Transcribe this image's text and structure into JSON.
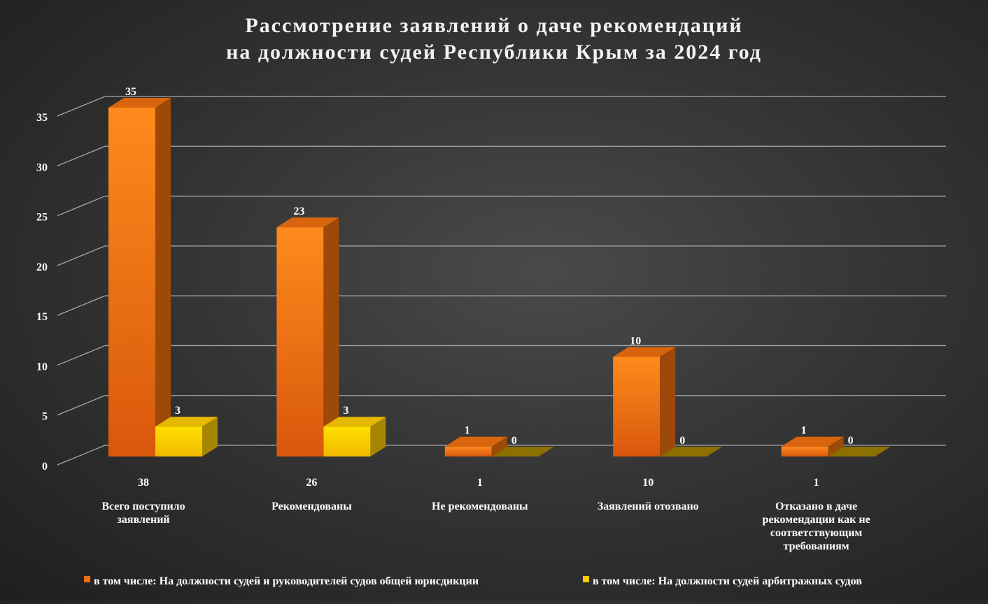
{
  "chart_data": {
    "type": "bar",
    "title_lines": [
      "Рассмотрение заявлений о даче рекомендаций",
      "на должности судей Республики Крым за 2024 год"
    ],
    "categories": [
      [
        "38",
        "Всего поступило",
        "заявлений"
      ],
      [
        "26",
        "Рекомендованы"
      ],
      [
        "1",
        "Не рекомендованы"
      ],
      [
        "10",
        "Заявлений отозвано"
      ],
      [
        "1",
        "Отказано в даче",
        "рекомендации как не",
        "соответствующим",
        "требованиям"
      ]
    ],
    "series": [
      {
        "name": "в том числе: На должности судей и руководителей судов общей юрисдикции",
        "values": [
          35,
          23,
          1,
          10,
          1
        ],
        "color": "#f07010"
      },
      {
        "name": "в том числе: На должности судей арбитражных судов",
        "values": [
          3,
          3,
          0,
          0,
          0
        ],
        "color": "#ffcc00"
      }
    ],
    "ylim": [
      0,
      35
    ],
    "yticks": [
      0,
      5,
      10,
      15,
      20,
      25,
      30,
      35
    ],
    "grid": true,
    "projection": "3d",
    "legend_position": "bottom",
    "data_labels": true
  }
}
